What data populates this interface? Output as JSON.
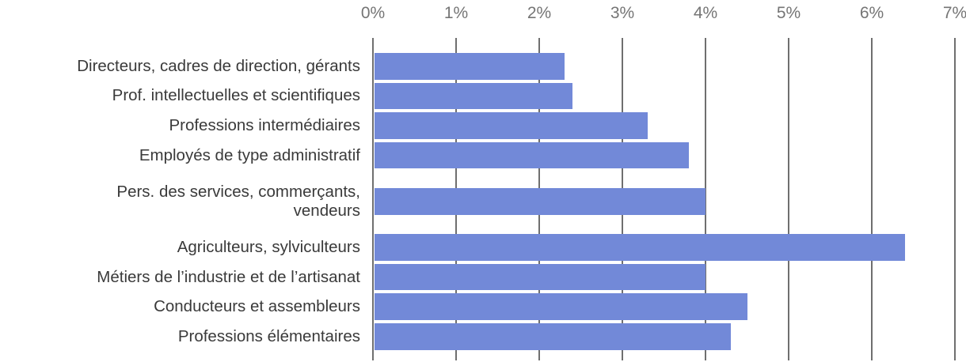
{
  "chart_data": {
    "type": "bar",
    "orientation": "horizontal",
    "title": "",
    "categories": [
      "Directeurs, cadres de direction, gérants",
      "Prof. intellectuelles et scientifiques",
      "Professions intermédiaires",
      "Employés de type administratif",
      "Pers. des services, commerçants,\nvendeurs",
      "Agriculteurs, sylviculteurs",
      "Métiers de l’industrie et de l’artisanat",
      "Conducteurs et assembleurs",
      "Professions élémentaires"
    ],
    "values": [
      2.3,
      2.4,
      3.3,
      3.8,
      4.0,
      6.4,
      4.0,
      4.5,
      4.3
    ],
    "value_unit": "%",
    "x_axis": {
      "position": "top",
      "min": 0,
      "max": 7,
      "ticks": [
        "0%",
        "1%",
        "2%",
        "3%",
        "4%",
        "5%",
        "6%",
        "7%"
      ]
    },
    "grid": "vertical-only",
    "legend": "none",
    "colors": {
      "bar": "#7289d8",
      "gridline": "#6f6f6f",
      "axis_label": "#757575",
      "category_label": "#3a3a3a"
    }
  }
}
